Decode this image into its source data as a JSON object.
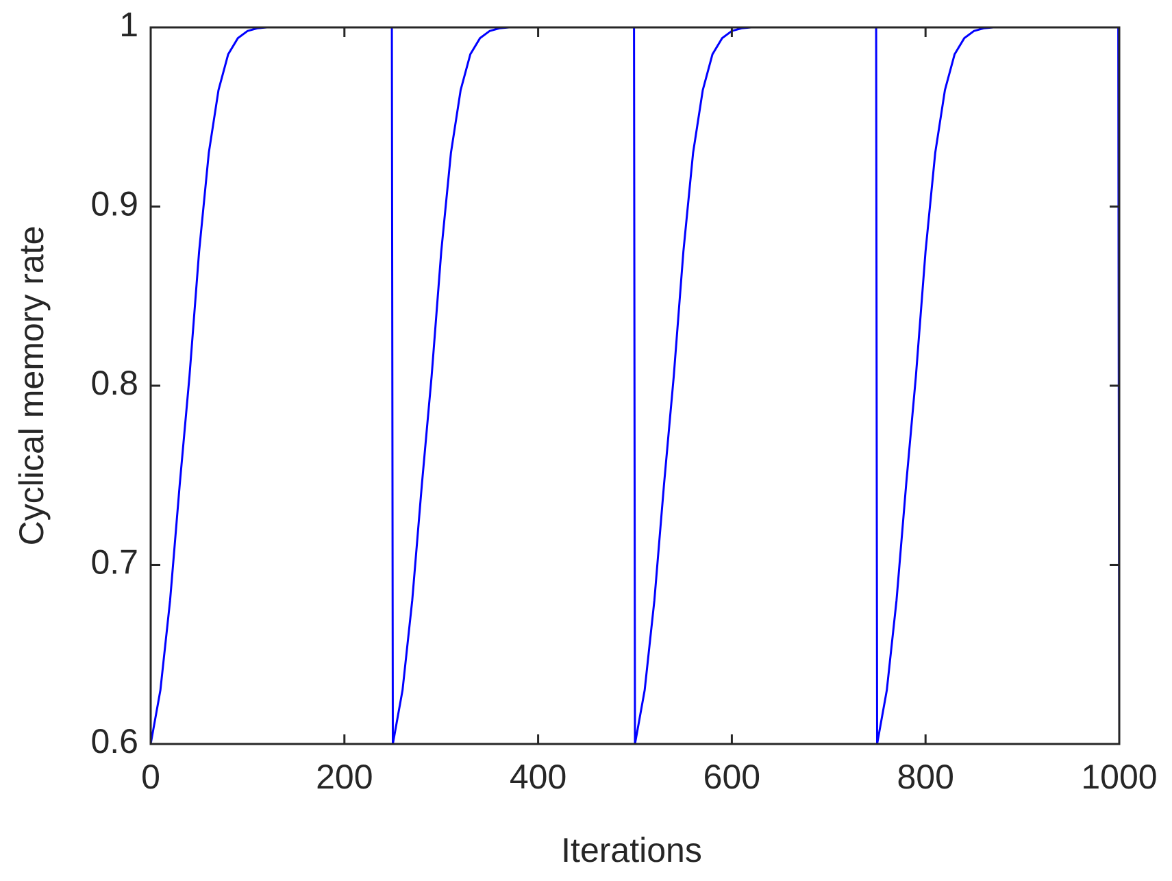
{
  "chart_data": {
    "type": "line",
    "xlabel": "Iterations",
    "ylabel": "Cyclical memory rate",
    "x": [
      0,
      10,
      20,
      30,
      40,
      50,
      60,
      70,
      80,
      90,
      100,
      110,
      120,
      249,
      250,
      260,
      270,
      280,
      290,
      300,
      310,
      320,
      330,
      340,
      350,
      360,
      370,
      499,
      500,
      510,
      520,
      530,
      540,
      550,
      560,
      570,
      580,
      590,
      600,
      610,
      620,
      749,
      750,
      760,
      770,
      780,
      790,
      800,
      810,
      820,
      830,
      840,
      850,
      860,
      870,
      999,
      1000
    ],
    "series": [
      {
        "color": "#0000ff",
        "values": [
          0.6,
          0.63,
          0.68,
          0.745,
          0.805,
          0.875,
          0.93,
          0.965,
          0.985,
          0.994,
          0.998,
          0.9995,
          1,
          1,
          0.6,
          0.63,
          0.68,
          0.745,
          0.805,
          0.875,
          0.93,
          0.965,
          0.985,
          0.994,
          0.998,
          0.9995,
          1,
          1,
          0.6,
          0.63,
          0.68,
          0.745,
          0.805,
          0.875,
          0.93,
          0.965,
          0.985,
          0.994,
          0.998,
          0.9995,
          1,
          1,
          0.6,
          0.63,
          0.68,
          0.745,
          0.805,
          0.875,
          0.93,
          0.965,
          0.985,
          0.994,
          0.998,
          0.9995,
          1,
          1,
          0.6
        ]
      }
    ],
    "xlim": [
      0,
      1000
    ],
    "xticks": [
      0,
      200,
      400,
      600,
      800,
      1000
    ],
    "ylim": [
      0.6,
      1
    ],
    "yticks": [
      0.6,
      0.7,
      0.8,
      0.9,
      1
    ],
    "grid": false
  }
}
